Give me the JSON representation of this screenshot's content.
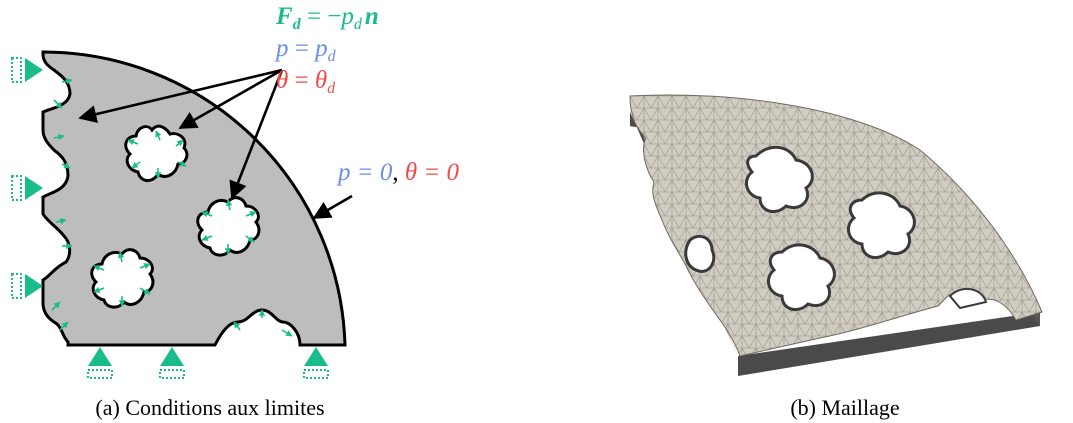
{
  "panel_a": {
    "caption": "(a) Conditions aux limites",
    "eq_force": {
      "lhs": "F",
      "lhs_sub": "d",
      "rel": " = −",
      "var": "p",
      "var_sub": "d",
      "vec": "n"
    },
    "eq_pressure": {
      "lhs": "p",
      "rel": " = ",
      "rhs": "p",
      "rhs_sub": "d"
    },
    "eq_temperature": {
      "lhs": "θ",
      "rel": " = ",
      "rhs": "θ",
      "rhs_sub": "d"
    },
    "eq_outer": {
      "p_part": "p = 0",
      "sep": ", ",
      "theta_part": "θ = 0"
    }
  },
  "panel_b": {
    "caption": "(b) Maillage"
  },
  "colors": {
    "force": "#1abc8c",
    "pressure": "#6d8ee8",
    "temperature": "#ef4b4b",
    "solid": "#bdbdbd",
    "mesh_face": "#cfcac0",
    "mesh_side": "#4a4a4a"
  }
}
